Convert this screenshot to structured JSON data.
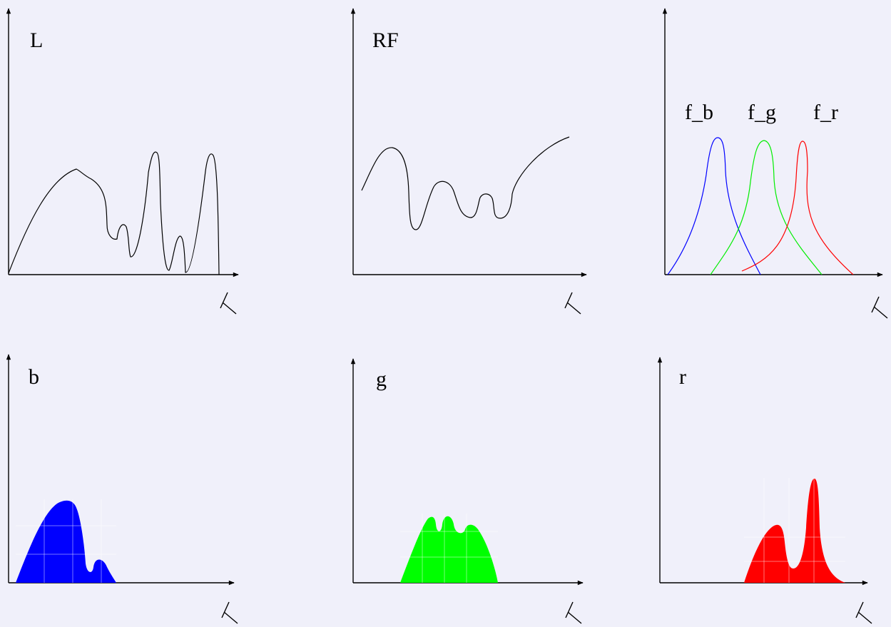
{
  "colors": {
    "background": "#f0f0fa",
    "axes": "#000000",
    "blue": "#0000ff",
    "green": "#00ff00",
    "red": "#ff0000"
  },
  "axis_symbol": "lambda-glyph",
  "panels": {
    "light": {
      "label": "L"
    },
    "response": {
      "label": "RF"
    },
    "filters": {
      "labels": {
        "blue": "f_b",
        "green": "f_g",
        "red": "f_r"
      }
    },
    "blue_channel": {
      "label": "b"
    },
    "green_channel": {
      "label": "g"
    },
    "red_channel": {
      "label": "r"
    }
  }
}
